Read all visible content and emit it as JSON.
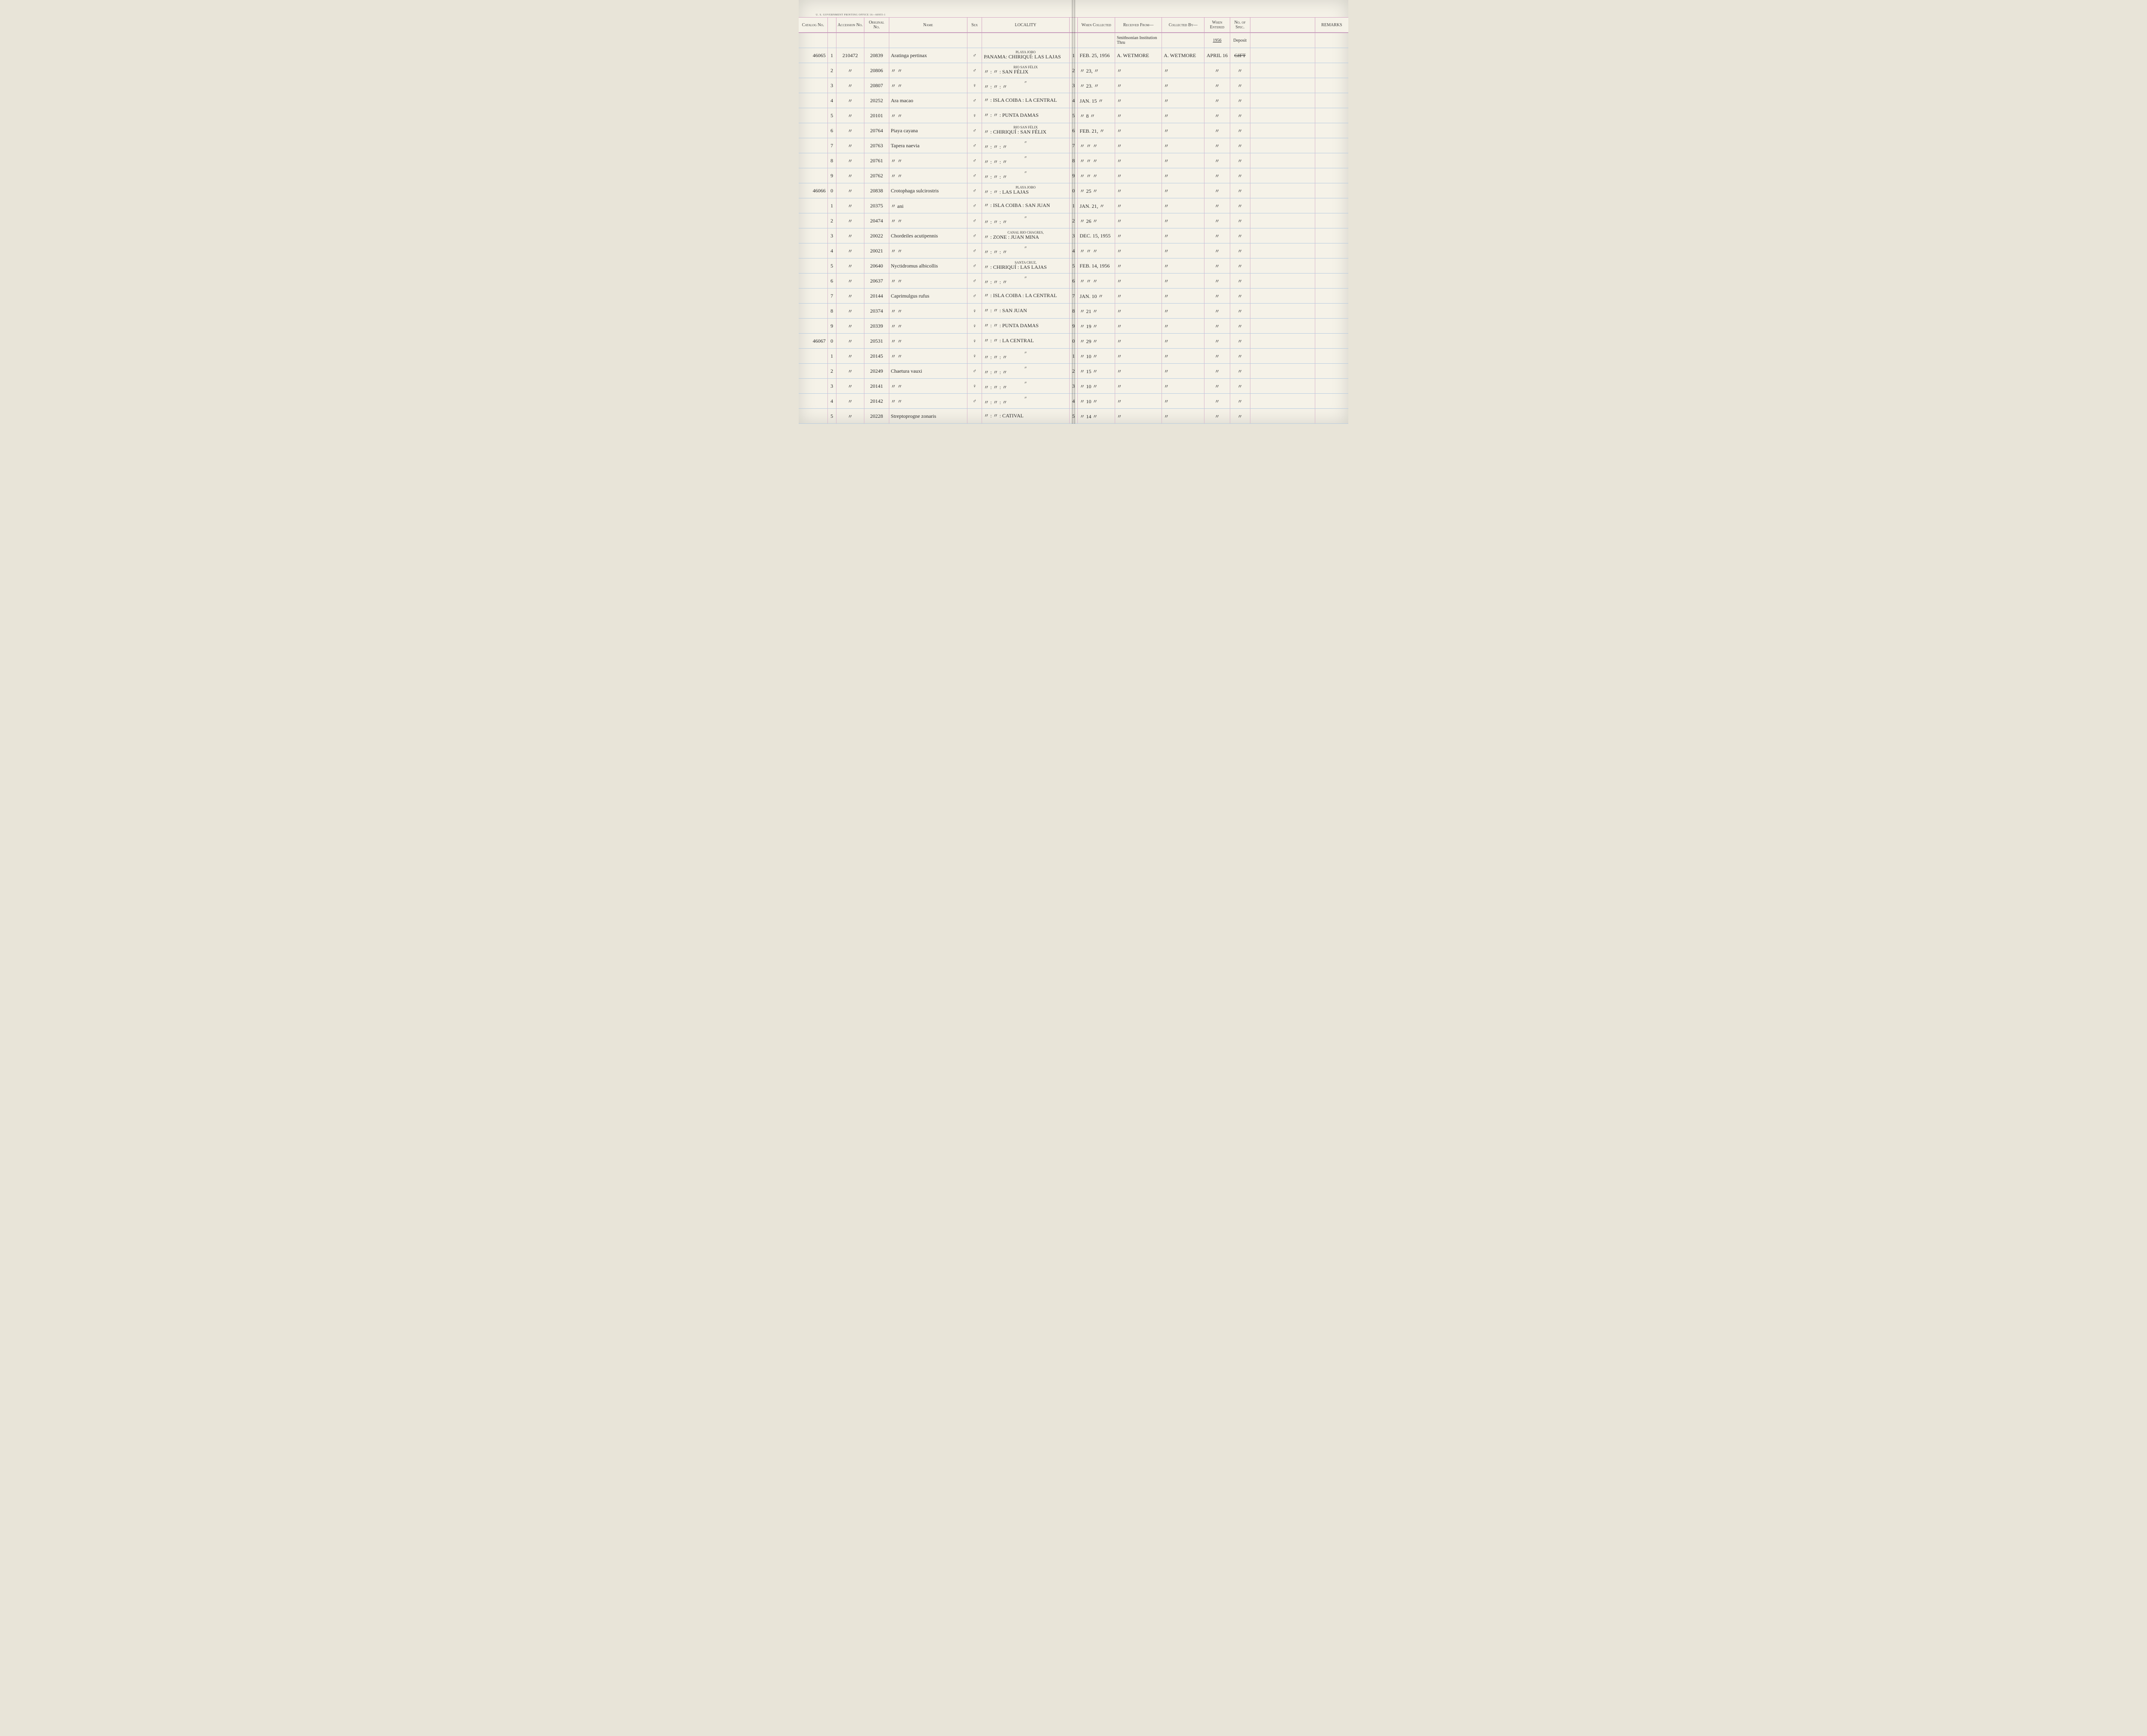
{
  "gov_print": "U. S. GOVERNMENT PRINTING OFFICE   16—60955-1",
  "headers": {
    "catalog": "Catalog\nNo.",
    "accession": "Accession\nNo.",
    "original": "Original\nNo.",
    "name": "Name",
    "sex": "Sex",
    "locality": "LOCALITY",
    "when": "When\nCollected",
    "received": "Received From—",
    "collected": "Collected By—",
    "entered": "When\nEntered",
    "spec": "No.\nof\nSpec.",
    "remarks": "REMARKS"
  },
  "header_extra": {
    "received": "Smithsonian Institution\nThru",
    "entered": "1956",
    "spec": "Deposit"
  },
  "rows": [
    {
      "catalog": "46065",
      "sub": "1",
      "accession": "210472",
      "original": "20839",
      "name": "Aratinga pertinax",
      "sex": "♂",
      "loc_above": "PLAYA JOBO",
      "loc": "PANAMA: CHIRIQUÍ: LAS LAJAS",
      "sub2": "1",
      "when": "FEB. 25, 1956",
      "received": "A. WETMORE",
      "collected": "A. WETMORE",
      "entered": "APRIL 16",
      "spec": "",
      "spec_strike": "GIFT"
    },
    {
      "catalog": "",
      "sub": "2",
      "accession": "〃",
      "original": "20806",
      "name": "〃        〃",
      "sex": "♂",
      "loc_above": "RIO SAN FÉLIX",
      "loc": "〃  :   〃   : SAN FÉLIX",
      "sub2": "2",
      "when": "〃 23, 〃",
      "received": "〃",
      "collected": "〃",
      "entered": "〃",
      "spec": "〃"
    },
    {
      "catalog": "",
      "sub": "3",
      "accession": "〃",
      "original": "20807",
      "name": "〃        〃",
      "sex": "♀",
      "loc_above": "〃",
      "loc": "〃  :   〃   :   〃",
      "sub2": "3",
      "when": "〃 23. 〃",
      "received": "〃",
      "collected": "〃",
      "entered": "〃",
      "spec": "〃"
    },
    {
      "catalog": "",
      "sub": "4",
      "accession": "〃",
      "original": "20252",
      "name": "Ara macao",
      "sex": "♂",
      "loc_above": "",
      "loc": "〃 : ISLA COIBA : LA CENTRAL",
      "sub2": "4",
      "when": "JAN. 15 〃",
      "received": "〃",
      "collected": "〃",
      "entered": "〃",
      "spec": "〃"
    },
    {
      "catalog": "",
      "sub": "5",
      "accession": "〃",
      "original": "20101",
      "name": "〃     〃",
      "sex": "♀",
      "loc_above": "",
      "loc": "〃 :   〃   : PUNTA DAMAS",
      "sub2": "5",
      "when": "〃  8  〃",
      "received": "〃",
      "collected": "〃",
      "entered": "〃",
      "spec": "〃"
    },
    {
      "catalog": "",
      "sub": "6",
      "accession": "〃",
      "original": "20764",
      "name": "Piaya cayana",
      "sex": "♂",
      "loc_above": "RIO SAN FÉLIX",
      "loc": "〃 : CHIRIQUÍ : SAN FÉLIX",
      "sub2": "6",
      "when": "FEB. 21, 〃",
      "received": "〃",
      "collected": "〃",
      "entered": "〃",
      "spec": "〃"
    },
    {
      "catalog": "",
      "sub": "7",
      "accession": "〃",
      "original": "20763",
      "name": "Tapera naevia",
      "sex": "♂",
      "loc_above": "〃",
      "loc": "〃 :   〃   :   〃",
      "sub2": "7",
      "when": "〃  〃  〃",
      "received": "〃",
      "collected": "〃",
      "entered": "〃",
      "spec": "〃"
    },
    {
      "catalog": "",
      "sub": "8",
      "accession": "〃",
      "original": "20761",
      "name": "〃        〃",
      "sex": "♂",
      "loc_above": "〃",
      "loc": "〃 :   〃   :   〃",
      "sub2": "8",
      "when": "〃  〃  〃",
      "received": "〃",
      "collected": "〃",
      "entered": "〃",
      "spec": "〃"
    },
    {
      "catalog": "",
      "sub": "9",
      "accession": "〃",
      "original": "20762",
      "name": "〃        〃",
      "sex": "♂",
      "loc_above": "〃",
      "loc": "〃 :   〃   :   〃",
      "sub2": "9",
      "when": "〃  〃  〃",
      "received": "〃",
      "collected": "〃",
      "entered": "〃",
      "spec": "〃"
    },
    {
      "catalog": "46066",
      "sub": "0",
      "accession": "〃",
      "original": "20838",
      "name": "Crotophaga sulcirostris",
      "sex": "♂",
      "loc_above": "PLAYA JOBO",
      "loc": "〃 :   〃   : LAS LAJAS",
      "sub2": "0",
      "when": "〃 25 〃",
      "received": "〃",
      "collected": "〃",
      "entered": "〃",
      "spec": "〃"
    },
    {
      "catalog": "",
      "sub": "1",
      "accession": "〃",
      "original": "20375",
      "name": "〃    ani",
      "sex": "♂",
      "loc_above": "",
      "loc": "〃 : ISLA COIBA : SAN JUAN",
      "sub2": "1",
      "when": "JAN. 21, 〃",
      "received": "〃",
      "collected": "〃",
      "entered": "〃",
      "spec": "〃"
    },
    {
      "catalog": "",
      "sub": "2",
      "accession": "〃",
      "original": "20474",
      "name": "〃     〃",
      "sex": "♂",
      "loc_above": "〃",
      "loc": "〃 :   〃   :   〃",
      "sub2": "2",
      "when": "〃 26 〃",
      "received": "〃",
      "collected": "〃",
      "entered": "〃",
      "spec": "〃"
    },
    {
      "catalog": "",
      "sub": "3",
      "accession": "〃",
      "original": "20022",
      "name": "Chordeiles acutipennis",
      "sex": "♂",
      "loc_above": "CANAL   RIO CHAGRES,",
      "loc": "〃 : ZONE : JUAN MINA",
      "sub2": "3",
      "when": "DEC. 15, 1955",
      "received": "〃",
      "collected": "〃",
      "entered": "〃",
      "spec": "〃"
    },
    {
      "catalog": "",
      "sub": "4",
      "accession": "〃",
      "original": "20021",
      "name": "〃        〃",
      "sex": "♂",
      "loc_above": "〃",
      "loc": "〃 :   〃   :   〃",
      "sub2": "4",
      "when": "〃  〃  〃",
      "received": "〃",
      "collected": "〃",
      "entered": "〃",
      "spec": "〃"
    },
    {
      "catalog": "",
      "sub": "5",
      "accession": "〃",
      "original": "20640",
      "name": "Nyctidromus albicollis",
      "sex": "♂",
      "loc_above": "SANTA CRUZ,",
      "loc": "〃 : CHIRIQUÍ : LAS LAJAS",
      "sub2": "5",
      "when": "FEB. 14, 1956",
      "received": "〃",
      "collected": "〃",
      "entered": "〃",
      "spec": "〃"
    },
    {
      "catalog": "",
      "sub": "6",
      "accession": "〃",
      "original": "20637",
      "name": "〃        〃",
      "sex": "♂",
      "loc_above": "〃",
      "loc": "〃 :   〃   :   〃",
      "sub2": "6",
      "when": "〃  〃  〃",
      "received": "〃",
      "collected": "〃",
      "entered": "〃",
      "spec": "〃"
    },
    {
      "catalog": "",
      "sub": "7",
      "accession": "〃",
      "original": "20144",
      "name": "Caprimulgus rufus",
      "sex": "♂",
      "loc_above": "",
      "loc": "〃 : ISLA COIBA : LA CENTRAL",
      "sub2": "7",
      "when": "JAN. 10 〃",
      "received": "〃",
      "collected": "〃",
      "entered": "〃",
      "spec": "〃"
    },
    {
      "catalog": "",
      "sub": "8",
      "accession": "〃",
      "original": "20374",
      "name": "〃        〃",
      "sex": "♀",
      "loc_above": "",
      "loc": "〃 :   〃   : SAN JUAN",
      "sub2": "8",
      "when": "〃 21 〃",
      "received": "〃",
      "collected": "〃",
      "entered": "〃",
      "spec": "〃"
    },
    {
      "catalog": "",
      "sub": "9",
      "accession": "〃",
      "original": "20339",
      "name": "〃        〃",
      "sex": "♀",
      "loc_above": "",
      "loc": "〃 :   〃   : PUNTA DAMAS",
      "sub2": "9",
      "when": "〃 19 〃",
      "received": "〃",
      "collected": "〃",
      "entered": "〃",
      "spec": "〃"
    },
    {
      "catalog": "46067",
      "sub": "0",
      "accession": "〃",
      "original": "20531",
      "name": "〃        〃",
      "sex": "♀",
      "loc_above": "",
      "loc": "〃 :   〃   : LA CENTRAL",
      "sub2": "0",
      "when": "〃 29 〃",
      "received": "〃",
      "collected": "〃",
      "entered": "〃",
      "spec": "〃"
    },
    {
      "catalog": "",
      "sub": "1",
      "accession": "〃",
      "original": "20145",
      "name": "〃        〃",
      "sex": "♀",
      "loc_above": "〃",
      "loc": "〃 :   〃   :   〃",
      "sub2": "1",
      "when": "〃 10 〃",
      "received": "〃",
      "collected": "〃",
      "entered": "〃",
      "spec": "〃"
    },
    {
      "catalog": "",
      "sub": "2",
      "accession": "〃",
      "original": "20249",
      "name": "Chaetura vauxi",
      "sex": "♂",
      "loc_above": "〃",
      "loc": "〃 :   〃   :   〃",
      "sub2": "2",
      "when": "〃 15 〃",
      "received": "〃",
      "collected": "〃",
      "entered": "〃",
      "spec": "〃"
    },
    {
      "catalog": "",
      "sub": "3",
      "accession": "〃",
      "original": "20141",
      "name": "〃     〃",
      "sex": "♀",
      "loc_above": "〃",
      "loc": "〃 :   〃   :   〃",
      "sub2": "3",
      "when": "〃 10 〃",
      "received": "〃",
      "collected": "〃",
      "entered": "〃",
      "spec": "〃"
    },
    {
      "catalog": "",
      "sub": "4",
      "accession": "〃",
      "original": "20142",
      "name": "〃     〃",
      "sex": "♂",
      "loc_above": "〃",
      "loc": "〃 :   〃   :   〃",
      "sub2": "4",
      "when": "〃 10 〃",
      "received": "〃",
      "collected": "〃",
      "entered": "〃",
      "spec": "〃"
    },
    {
      "catalog": "",
      "sub": "5",
      "accession": "〃",
      "original": "20228",
      "name": "Streptoprogne zonaris",
      "sex": "",
      "loc_above": "",
      "loc": "〃 :   〃   : CATIVAL",
      "sub2": "5",
      "when": "〃 14 〃",
      "received": "〃",
      "collected": "〃",
      "entered": "〃",
      "spec": "〃"
    }
  ],
  "colors": {
    "paper": "#f5f2e8",
    "pink_rule": "#d4a5c2",
    "blue_rule": "#b8cce0",
    "ink": "#2a2a2a"
  }
}
